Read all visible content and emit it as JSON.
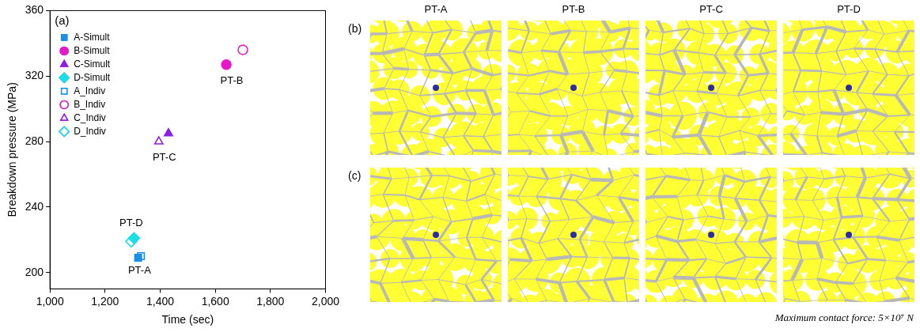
{
  "chart_data": {
    "type": "scatter",
    "title": "(a)",
    "x_label": "Time (sec)",
    "y_label": "Breakdown pressure (MPa)",
    "xlim": [
      1000,
      2000
    ],
    "xticks": [
      1000,
      1200,
      1400,
      1600,
      1800,
      2000
    ],
    "ylim": [
      190,
      360
    ],
    "yticks": [
      200,
      240,
      280,
      320,
      360
    ],
    "grid": false,
    "legend": "upper left",
    "series": [
      {
        "name": "A-Simult",
        "color": "#1a8fe3",
        "marker": "square",
        "x": [
          1320
        ],
        "values": [
          209
        ]
      },
      {
        "name": "B-Simult",
        "color": "#e619c8",
        "marker": "circle",
        "x": [
          1640
        ],
        "values": [
          327
        ]
      },
      {
        "name": "C-Simult",
        "color": "#8a1ee6",
        "marker": "triangle",
        "x": [
          1430
        ],
        "values": [
          285
        ]
      },
      {
        "name": "D-Simult",
        "color": "#19dfe6",
        "marker": "diamond",
        "x": [
          1305
        ],
        "values": [
          221
        ]
      },
      {
        "name": "A_Indiv",
        "color": "#1a8fe3",
        "marker": "open-square",
        "x": [
          1330
        ],
        "values": [
          210
        ]
      },
      {
        "name": "B_Indiv",
        "color": "#e619c8",
        "marker": "open-circle",
        "x": [
          1700
        ],
        "values": [
          336
        ]
      },
      {
        "name": "C_Indiv",
        "color": "#8a1ee6",
        "marker": "open-triangle",
        "x": [
          1395
        ],
        "values": [
          280
        ]
      },
      {
        "name": "D_Indiv",
        "color": "#19dfe6",
        "marker": "open-diamond",
        "x": [
          1295
        ],
        "values": [
          219
        ]
      }
    ],
    "annotations": [
      {
        "text": "PT-B",
        "x": 1660,
        "y": 317
      },
      {
        "text": "PT-C",
        "x": 1415,
        "y": 270
      },
      {
        "text": "PT-D",
        "x": 1295,
        "y": 230
      },
      {
        "text": "PT-A",
        "x": 1325,
        "y": 201
      }
    ]
  },
  "images": {
    "labels": [
      "(b)",
      "(c)"
    ],
    "columns": [
      "PT-A",
      "PT-B",
      "PT-C",
      "PT-D"
    ],
    "note": "Maximum contact force: 5×10⁷ N"
  }
}
